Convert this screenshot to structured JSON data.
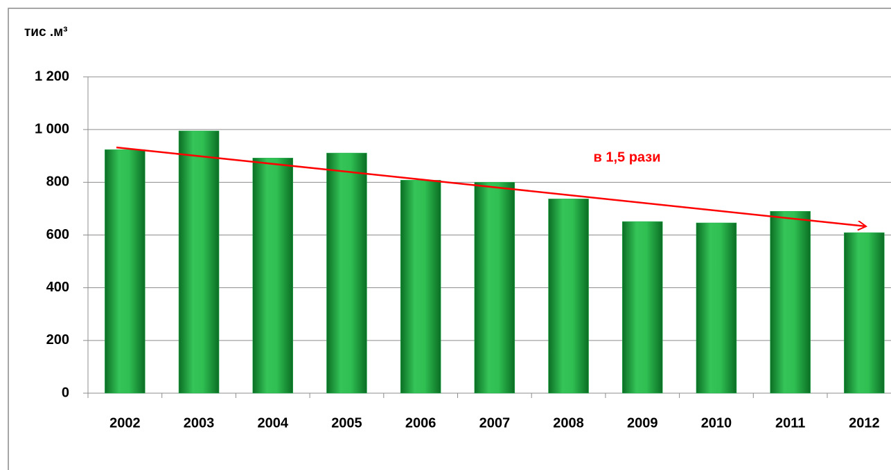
{
  "chart_data": {
    "type": "bar",
    "y_axis_label": "тис .м³",
    "annotation": "в 1,5 рази",
    "categories": [
      "2002",
      "2003",
      "2004",
      "2005",
      "2006",
      "2007",
      "2008",
      "2009",
      "2010",
      "2011",
      "2012"
    ],
    "values": [
      924,
      995,
      892,
      911,
      808,
      800,
      737,
      651,
      646,
      690,
      609
    ],
    "color": "#22b14c",
    "ylim": [
      0,
      1200
    ],
    "yticks": [
      0,
      200,
      400,
      600,
      800,
      {
        "value": 1000,
        "label": "1 000"
      },
      {
        "value": 1200,
        "label": "1 200"
      }
    ],
    "grid": true
  }
}
